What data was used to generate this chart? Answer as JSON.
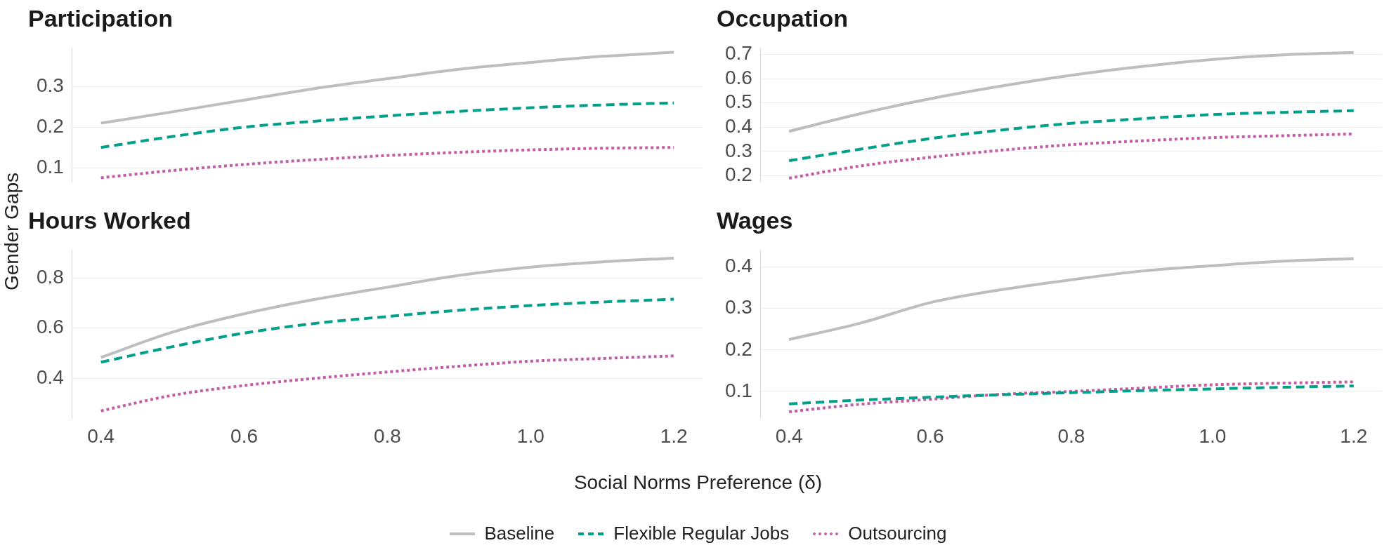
{
  "chart_data": [
    {
      "type": "line",
      "title": "Participation",
      "ylabel": "Gender Gaps",
      "legend": "bottom",
      "grid": "y",
      "tick_labels": "y",
      "x": [
        0.4,
        0.5,
        0.6,
        0.7,
        0.8,
        0.9,
        1.0,
        1.1,
        1.2
      ],
      "xlim": [
        0.36,
        1.24
      ],
      "ylim": [
        0.065,
        0.395
      ],
      "yticks": [
        0.1,
        0.2,
        0.3
      ],
      "series": [
        {
          "name": "Baseline",
          "color": "#bebebe",
          "line_style": "solid",
          "values": [
            0.21,
            0.238,
            0.267,
            0.296,
            0.32,
            0.343,
            0.36,
            0.375,
            0.385
          ]
        },
        {
          "name": "Flexible Regular Jobs",
          "color": "#00a08a",
          "line_style": "dashed",
          "values": [
            0.15,
            0.177,
            0.2,
            0.215,
            0.228,
            0.239,
            0.248,
            0.255,
            0.26
          ]
        },
        {
          "name": "Outsourcing",
          "color": "#c45ca8",
          "line_style": "dotted",
          "values": [
            0.075,
            0.093,
            0.108,
            0.12,
            0.13,
            0.138,
            0.144,
            0.148,
            0.15
          ]
        }
      ]
    },
    {
      "type": "line",
      "title": "Occupation",
      "grid": "y",
      "tick_labels": "y",
      "x": [
        0.4,
        0.5,
        0.6,
        0.7,
        0.8,
        0.9,
        1.0,
        1.1,
        1.2
      ],
      "xlim": [
        0.36,
        1.24
      ],
      "ylim": [
        0.175,
        0.725
      ],
      "yticks": [
        0.2,
        0.3,
        0.4,
        0.5,
        0.6,
        0.7
      ],
      "series": [
        {
          "color": "#bebebe",
          "line_style": "solid",
          "values": [
            0.383,
            0.455,
            0.517,
            0.569,
            0.614,
            0.65,
            0.679,
            0.698,
            0.708
          ]
        },
        {
          "color": "#00a08a",
          "line_style": "dashed",
          "values": [
            0.262,
            0.309,
            0.353,
            0.388,
            0.416,
            0.435,
            0.452,
            0.461,
            0.468
          ]
        },
        {
          "color": "#c45ca8",
          "line_style": "dotted",
          "values": [
            0.19,
            0.24,
            0.276,
            0.305,
            0.328,
            0.344,
            0.357,
            0.365,
            0.372
          ]
        }
      ]
    },
    {
      "type": "line",
      "title": "Hours Worked",
      "xlabel": "Social Norms Preference (δ)",
      "grid": "y",
      "x": [
        0.4,
        0.5,
        0.6,
        0.7,
        0.8,
        0.9,
        1.0,
        1.1,
        1.2
      ],
      "xlim": [
        0.36,
        1.24
      ],
      "xticks": [
        {
          "value": 0.4,
          "label": "0.4"
        },
        {
          "value": 0.6,
          "label": "0.6"
        },
        {
          "value": 0.8,
          "label": "0.8"
        },
        {
          "value": 1.0,
          "label": "1.0"
        },
        {
          "value": 1.2,
          "label": "1.2"
        }
      ],
      "ylim": [
        0.24,
        0.91
      ],
      "yticks": [
        0.4,
        0.6,
        0.8
      ],
      "series": [
        {
          "color": "#bebebe",
          "line_style": "solid",
          "values": [
            0.483,
            0.584,
            0.657,
            0.715,
            0.763,
            0.81,
            0.843,
            0.864,
            0.879
          ]
        },
        {
          "color": "#00a08a",
          "line_style": "dashed",
          "values": [
            0.464,
            0.526,
            0.58,
            0.619,
            0.646,
            0.671,
            0.69,
            0.704,
            0.715
          ]
        },
        {
          "color": "#c45ca8",
          "line_style": "dotted",
          "values": [
            0.27,
            0.332,
            0.371,
            0.4,
            0.425,
            0.448,
            0.468,
            0.479,
            0.489
          ]
        }
      ]
    },
    {
      "type": "line",
      "title": "Wages",
      "grid": "y",
      "x": [
        0.4,
        0.5,
        0.6,
        0.7,
        0.8,
        0.9,
        1.0,
        1.1,
        1.2
      ],
      "xlim": [
        0.36,
        1.24
      ],
      "xticks": [
        {
          "value": 0.4,
          "label": "0.4"
        },
        {
          "value": 0.6,
          "label": "0.6"
        },
        {
          "value": 0.8,
          "label": "0.8"
        },
        {
          "value": 1.0,
          "label": "1.0"
        },
        {
          "value": 1.2,
          "label": "1.2"
        }
      ],
      "ylim": [
        0.035,
        0.44
      ],
      "yticks": [
        0.1,
        0.2,
        0.3,
        0.4
      ],
      "series": [
        {
          "color": "#bebebe",
          "line_style": "solid",
          "values": [
            0.225,
            0.264,
            0.314,
            0.345,
            0.369,
            0.39,
            0.403,
            0.414,
            0.42
          ]
        },
        {
          "color": "#00a08a",
          "line_style": "dashed",
          "values": [
            0.07,
            0.079,
            0.086,
            0.092,
            0.097,
            0.102,
            0.106,
            0.11,
            0.113
          ]
        },
        {
          "color": "#c45ca8",
          "line_style": "dotted",
          "values": [
            0.051,
            0.069,
            0.081,
            0.093,
            0.1,
            0.108,
            0.116,
            0.12,
            0.123
          ]
        }
      ]
    }
  ]
}
